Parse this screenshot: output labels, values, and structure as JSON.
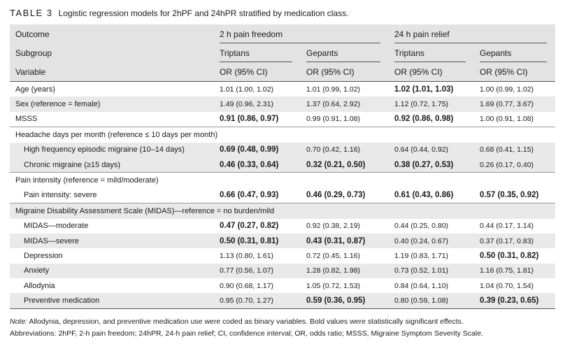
{
  "caption": {
    "label": "TABLE 3",
    "text": "Logistic regression models for 2hPF and 24hPR stratified by medication class."
  },
  "header": {
    "outcome_label": "Outcome",
    "subgroup_label": "Subgroup",
    "variable_label": "Variable",
    "outcomes": [
      "2 h pain freedom",
      "24 h pain relief"
    ],
    "subgroups": [
      "Triptans",
      "Gepants",
      "Triptans",
      "Gepants"
    ],
    "metric": [
      "OR (95% CI)",
      "OR (95% CI)",
      "OR (95% CI)",
      "OR (95% CI)"
    ]
  },
  "rows": [
    {
      "label": "Age (years)",
      "indent": false,
      "section": false,
      "shade": "odd",
      "cells": [
        {
          "v": "1.01 (1.00, 1.02)",
          "b": false
        },
        {
          "v": "1.01 (0.99, 1.02)",
          "b": false
        },
        {
          "v": "1.02 (1.01, 1.03)",
          "b": true
        },
        {
          "v": "1.00 (0.99, 1.02)",
          "b": false
        }
      ]
    },
    {
      "label": "Sex (reference = female)",
      "indent": false,
      "section": false,
      "shade": "even",
      "cells": [
        {
          "v": "1.49 (0.96, 2.31)",
          "b": false
        },
        {
          "v": "1.37 (0.64, 2.92)",
          "b": false
        },
        {
          "v": "1.12 (0.72, 1.75)",
          "b": false
        },
        {
          "v": "1.69 (0.77, 3.67)",
          "b": false
        }
      ]
    },
    {
      "label": "MSSS",
      "indent": false,
      "section": false,
      "shade": "odd",
      "cells": [
        {
          "v": "0.91 (0.86, 0.97)",
          "b": true
        },
        {
          "v": "0.99 (0.91, 1.08)",
          "b": false
        },
        {
          "v": "0.92 (0.86, 0.98)",
          "b": true
        },
        {
          "v": "1.00 (0.91, 1.08)",
          "b": false
        }
      ]
    },
    {
      "label": "Headache days per month (reference ≤ 10 days per month)",
      "indent": false,
      "section": true,
      "shade": "odd",
      "cells": [
        {
          "v": "",
          "b": false
        },
        {
          "v": "",
          "b": false
        },
        {
          "v": "",
          "b": false
        },
        {
          "v": "",
          "b": false
        }
      ]
    },
    {
      "label": "High frequency episodic migraine (10–14 days)",
      "indent": true,
      "section": false,
      "shade": "even",
      "cells": [
        {
          "v": "0.69 (0.48, 0.99)",
          "b": true
        },
        {
          "v": "0.70 (0.42, 1.16)",
          "b": false
        },
        {
          "v": "0.64 (0.44, 0.92)",
          "b": false
        },
        {
          "v": "0.68 (0.41, 1.15)",
          "b": false
        }
      ]
    },
    {
      "label": "Chronic migraine (≥15 days)",
      "indent": true,
      "section": false,
      "shade": "even",
      "cells": [
        {
          "v": "0.46 (0.33, 0.64)",
          "b": true
        },
        {
          "v": "0.32 (0.21, 0.50)",
          "b": true
        },
        {
          "v": "0.38 (0.27, 0.53)",
          "b": true
        },
        {
          "v": "0.26 (0.17, 0.40)",
          "b": false
        }
      ]
    },
    {
      "label": "Pain intensity (reference = mild/moderate)",
      "indent": false,
      "section": true,
      "shade": "odd",
      "cells": [
        {
          "v": "",
          "b": false
        },
        {
          "v": "",
          "b": false
        },
        {
          "v": "",
          "b": false
        },
        {
          "v": "",
          "b": false
        }
      ]
    },
    {
      "label": "Pain intensity: severe",
      "indent": true,
      "section": false,
      "shade": "odd",
      "cells": [
        {
          "v": "0.66 (0.47, 0.93)",
          "b": true
        },
        {
          "v": "0.46 (0.29, 0.73)",
          "b": true
        },
        {
          "v": "0.61 (0.43, 0.86)",
          "b": true
        },
        {
          "v": "0.57 (0.35, 0.92)",
          "b": true
        }
      ]
    },
    {
      "label": "Migraine Disability Assessment Scale (MIDAS)—reference = no burden/mild",
      "indent": false,
      "section": true,
      "shade": "even",
      "cells": [
        {
          "v": "",
          "b": false
        },
        {
          "v": "",
          "b": false
        },
        {
          "v": "",
          "b": false
        },
        {
          "v": "",
          "b": false
        }
      ]
    },
    {
      "label": "MIDAS—moderate",
      "indent": true,
      "section": false,
      "shade": "odd",
      "cells": [
        {
          "v": "0.47 (0.27, 0.82)",
          "b": true
        },
        {
          "v": "0.92 (0.38, 2.19)",
          "b": false
        },
        {
          "v": "0.44 (0.25, 0.80)",
          "b": false
        },
        {
          "v": "0.44 (0.17, 1.14)",
          "b": false
        }
      ]
    },
    {
      "label": "MIDAS—severe",
      "indent": true,
      "section": false,
      "shade": "even",
      "cells": [
        {
          "v": "0.50 (0.31, 0.81)",
          "b": true
        },
        {
          "v": "0.43 (0.31, 0.87)",
          "b": true
        },
        {
          "v": "0.40 (0.24, 0.67)",
          "b": false
        },
        {
          "v": "0.37 (0.17, 0.83)",
          "b": false
        }
      ]
    },
    {
      "label": "Depression",
      "indent": true,
      "section": false,
      "shade": "odd",
      "cells": [
        {
          "v": "1.13 (0.80, 1.61)",
          "b": false
        },
        {
          "v": "0.72 (0.45, 1.16)",
          "b": false
        },
        {
          "v": "1.19 (0.83, 1.71)",
          "b": false
        },
        {
          "v": "0.50 (0.31, 0.82)",
          "b": true
        }
      ]
    },
    {
      "label": "Anxiety",
      "indent": true,
      "section": false,
      "shade": "even",
      "cells": [
        {
          "v": "0.77 (0.56, 1.07)",
          "b": false
        },
        {
          "v": "1.28 (0.82, 1.98)",
          "b": false
        },
        {
          "v": "0.73 (0.52, 1.01)",
          "b": false
        },
        {
          "v": "1.16 (0.75, 1.81)",
          "b": false
        }
      ]
    },
    {
      "label": "Allodynia",
      "indent": true,
      "section": false,
      "shade": "odd",
      "cells": [
        {
          "v": "0.90 (0.68, 1.17)",
          "b": false
        },
        {
          "v": "1.05 (0.72, 1.53)",
          "b": false
        },
        {
          "v": "0.84 (0.64, 1.10)",
          "b": false
        },
        {
          "v": "1.04 (0.70, 1.54)",
          "b": false
        }
      ]
    },
    {
      "label": "Preventive medication",
      "indent": true,
      "section": false,
      "shade": "even",
      "cells": [
        {
          "v": "0.95 (0.70, 1.27)",
          "b": false
        },
        {
          "v": "0.59 (0.36, 0.95)",
          "b": true
        },
        {
          "v": "0.80 (0.59, 1.08)",
          "b": false
        },
        {
          "v": "0.39 (0.23, 0.65)",
          "b": true
        }
      ]
    }
  ],
  "note": {
    "label": "Note:",
    "text": "Allodynia, depression, and preventive medication use were coded as binary variables. Bold values were statistically significant effects.",
    "abbreviations": "Abbreviations: 2hPF, 2-h pain freedom; 24hPR, 24-h pain relief; CI, confidence interval; OR, odds ratio; MSSS, Migraine Symptom Severity Scale."
  }
}
